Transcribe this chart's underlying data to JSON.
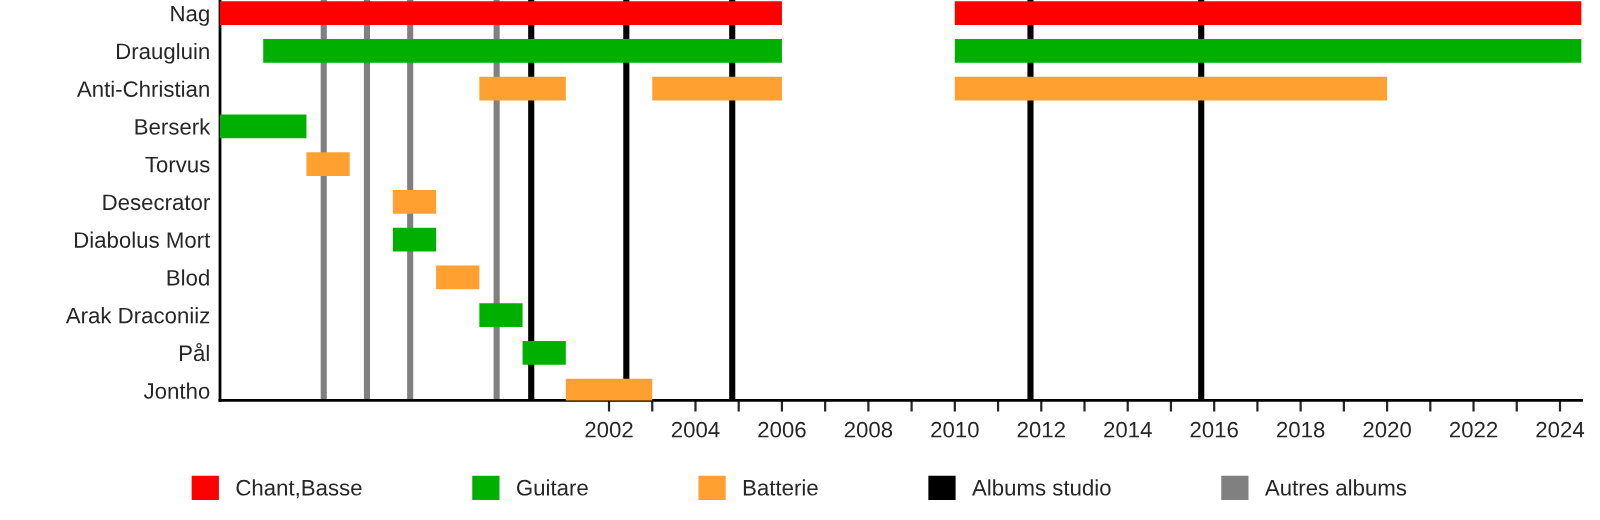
{
  "chart_data": {
    "type": "bar",
    "orientation": "horizontal",
    "categories": [
      "Nag",
      "Draugluin",
      "Anti-Christian",
      "Berserk",
      "Torvus",
      "Desecrator",
      "Diabolus Mort",
      "Blod",
      "Arak Draconiiz",
      "Pål",
      "Jontho"
    ],
    "series": [
      {
        "name": "Chant,Basse",
        "color": "#ff0000",
        "base": [
          1993,
          null,
          null,
          null,
          null,
          null,
          null,
          null,
          null,
          null,
          null
        ],
        "values": [
          13,
          null,
          null,
          null,
          null,
          null,
          null,
          null,
          null,
          null,
          null
        ]
      },
      {
        "color": "#ff0000",
        "base": [
          2010,
          null,
          null,
          null,
          null,
          null,
          null,
          null,
          null,
          null,
          null
        ],
        "values": [
          14.5,
          null,
          null,
          null,
          null,
          null,
          null,
          null,
          null,
          null,
          null
        ]
      },
      {
        "name": "Guitare",
        "color": "#00b000",
        "base": [
          null,
          1994,
          null,
          1993,
          null,
          null,
          1997,
          null,
          1999,
          2000,
          null
        ],
        "values": [
          null,
          12,
          null,
          2,
          null,
          null,
          1,
          null,
          1,
          1,
          null
        ]
      },
      {
        "color": "#00b000",
        "base": [
          null,
          2010,
          null,
          null,
          null,
          null,
          null,
          null,
          null,
          null,
          null
        ],
        "values": [
          null,
          14.5,
          null,
          null,
          null,
          null,
          null,
          null,
          null,
          null,
          null
        ]
      },
      {
        "name": "Batterie",
        "color": "#ffa030",
        "base": [
          null,
          null,
          1999,
          null,
          1995,
          1997,
          null,
          1998,
          null,
          null,
          2001
        ],
        "values": [
          null,
          null,
          2,
          null,
          1,
          1,
          null,
          1,
          null,
          null,
          2
        ]
      },
      {
        "color": "#ffa030",
        "base": [
          null,
          null,
          2003,
          null,
          null,
          null,
          null,
          null,
          null,
          null,
          null
        ],
        "values": [
          null,
          null,
          3,
          null,
          null,
          null,
          null,
          null,
          null,
          null,
          null
        ]
      },
      {
        "color": "#ffa030",
        "base": [
          null,
          null,
          2010,
          null,
          null,
          null,
          null,
          null,
          null,
          null,
          null
        ],
        "values": [
          null,
          null,
          10,
          null,
          null,
          null,
          null,
          null,
          null,
          null,
          null
        ]
      }
    ],
    "ref_lines": [
      {
        "axis": "x",
        "value": 2000.2,
        "label": "Albums studio",
        "color": "#000000"
      },
      {
        "axis": "x",
        "value": 2002.4,
        "color": "#000000"
      },
      {
        "axis": "x",
        "value": 2004.85,
        "color": "#000000"
      },
      {
        "axis": "x",
        "value": 2011.75,
        "color": "#000000"
      },
      {
        "axis": "x",
        "value": 2015.7,
        "color": "#000000"
      },
      {
        "axis": "x",
        "value": 1995.4,
        "label": "Autres albums",
        "color": "#808080"
      },
      {
        "axis": "x",
        "value": 1996.4,
        "color": "#808080"
      },
      {
        "axis": "x",
        "value": 1997.4,
        "color": "#808080"
      },
      {
        "axis": "x",
        "value": 1999.4,
        "color": "#808080"
      }
    ],
    "xlim": [
      1993,
      2024.5
    ],
    "xticks": [
      2002,
      {
        "value": 2003,
        "label": null
      },
      2004,
      {
        "value": 2005,
        "label": null
      },
      2006,
      {
        "value": 2007,
        "label": null
      },
      2008,
      {
        "value": 2009,
        "label": null
      },
      2010,
      {
        "value": 2011,
        "label": null
      },
      2012,
      {
        "value": 2013,
        "label": null
      },
      2014,
      {
        "value": 2015,
        "label": null
      },
      2016,
      {
        "value": 2017,
        "label": null
      },
      2018,
      {
        "value": 2019,
        "label": null
      },
      2020,
      {
        "value": 2021,
        "label": null
      },
      2022,
      {
        "value": 2023,
        "label": null
      },
      2024
    ],
    "grid": false,
    "legend": "bottom"
  }
}
